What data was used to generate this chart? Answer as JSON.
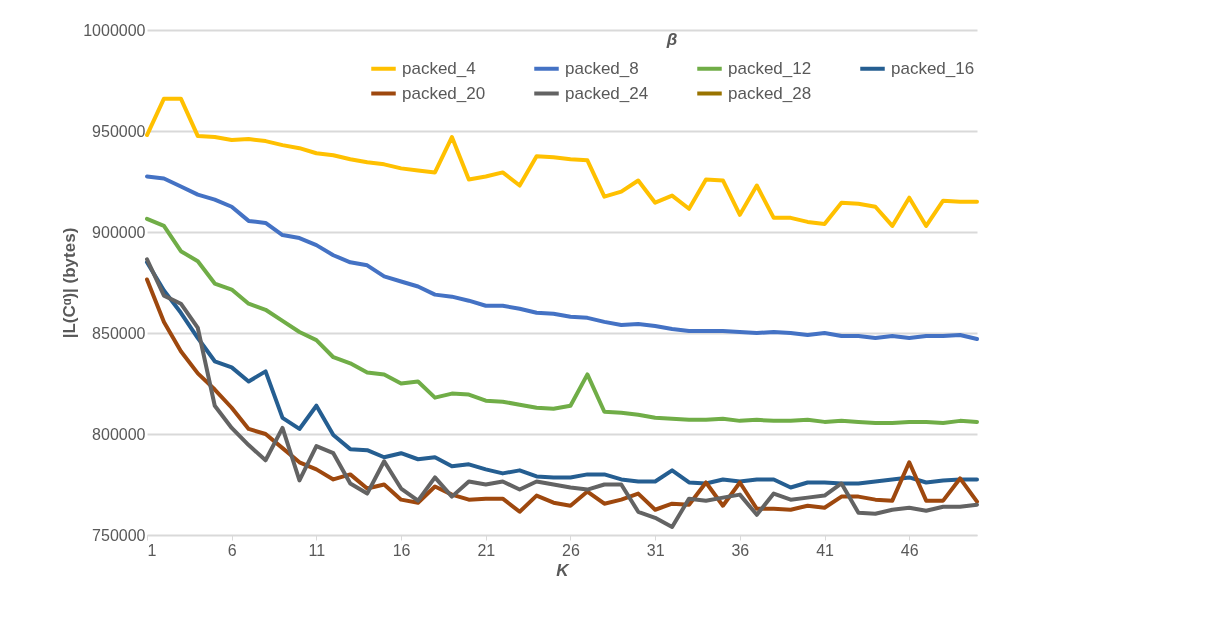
{
  "chart_data": {
    "type": "line",
    "xlabel": "K",
    "ylabel": "|L(Cᵅ)| (bytes)",
    "legend_title": "β",
    "x": [
      1,
      2,
      3,
      4,
      5,
      6,
      7,
      8,
      9,
      10,
      11,
      12,
      13,
      14,
      15,
      16,
      17,
      18,
      19,
      20,
      21,
      22,
      23,
      24,
      25,
      26,
      27,
      28,
      29,
      30,
      31,
      32,
      33,
      34,
      35,
      36,
      37,
      38,
      39,
      40,
      41,
      42,
      43,
      44,
      45,
      46,
      47,
      48,
      49,
      50
    ],
    "xlim": [
      1,
      50
    ],
    "xticks": [
      1,
      6,
      11,
      16,
      21,
      26,
      31,
      36,
      41,
      46
    ],
    "ylim": [
      750000,
      1000000
    ],
    "yticks": [
      750000,
      800000,
      850000,
      900000,
      950000,
      1000000
    ],
    "grid": "y",
    "legend": "top right",
    "line_style": "solid",
    "marker": "none",
    "series": [
      {
        "name": "packed_4",
        "color": "#ffc000",
        "values": [
          948000,
          966000,
          966000,
          947500,
          947000,
          945500,
          946000,
          945000,
          943000,
          941500,
          939000,
          938000,
          936000,
          934500,
          933500,
          931500,
          930500,
          929500,
          947000,
          926000,
          927500,
          929500,
          923000,
          937500,
          937000,
          936000,
          935500,
          917500,
          920000,
          925500,
          914500,
          918000,
          911500,
          926000,
          925500,
          908500,
          923000,
          907000,
          907000,
          905000,
          904000,
          914500,
          914000,
          912500,
          903000,
          917000,
          903000,
          915500,
          915000,
          915000
        ]
      },
      {
        "name": "packed_8",
        "color": "#4472c4",
        "values": [
          927500,
          926500,
          922500,
          918500,
          916000,
          912500,
          905500,
          904500,
          898500,
          897000,
          893500,
          888500,
          885000,
          883500,
          878000,
          875500,
          873000,
          869000,
          868000,
          866000,
          863500,
          863500,
          862000,
          860000,
          859500,
          858000,
          857500,
          855500,
          854000,
          854500,
          853500,
          852000,
          851000,
          851000,
          851000,
          850500,
          850000,
          850500,
          850000,
          849000,
          850000,
          848500,
          848500,
          847500,
          848500,
          847500,
          848500,
          848500,
          849000,
          847000
        ]
      },
      {
        "name": "packed_12",
        "color": "#70ad47",
        "values": [
          906500,
          903000,
          890500,
          885500,
          874500,
          871500,
          864500,
          861500,
          856000,
          850500,
          846500,
          838000,
          835000,
          830500,
          829500,
          825000,
          826000,
          818000,
          820000,
          819500,
          816500,
          816000,
          814500,
          813000,
          812500,
          814000,
          829500,
          811000,
          810500,
          809500,
          808000,
          807500,
          807000,
          807000,
          807500,
          806500,
          807000,
          806500,
          806500,
          807000,
          806000,
          806500,
          806000,
          805500,
          805500,
          806000,
          806000,
          805500,
          806500,
          806000
        ]
      },
      {
        "name": "packed_16",
        "color": "#255e91",
        "values": [
          885000,
          871000,
          860000,
          847500,
          836000,
          833000,
          826000,
          831000,
          808000,
          802500,
          814000,
          799500,
          792500,
          792000,
          788500,
          790500,
          787500,
          788500,
          784000,
          785000,
          782500,
          780500,
          782000,
          779000,
          778500,
          778500,
          780000,
          780000,
          777500,
          776500,
          776500,
          782000,
          776000,
          775500,
          777500,
          776500,
          777500,
          777500,
          773500,
          776000,
          776000,
          775500,
          775500,
          776500,
          777500,
          778500,
          776000,
          777000,
          777500,
          777500
        ]
      },
      {
        "name": "packed_20",
        "color": "#9e480e",
        "values": [
          876500,
          855500,
          841000,
          830000,
          822000,
          813000,
          802500,
          800000,
          793000,
          786000,
          782500,
          777500,
          780000,
          773000,
          775000,
          767500,
          766000,
          774000,
          770000,
          767500,
          768000,
          768000,
          761500,
          769500,
          766000,
          764500,
          771500,
          765500,
          767500,
          770500,
          762500,
          765500,
          765000,
          776000,
          764500,
          776000,
          763000,
          763000,
          762500,
          764500,
          763500,
          769000,
          769000,
          767500,
          767000,
          786000,
          767000,
          767000,
          778000,
          766500
        ]
      },
      {
        "name": "packed_24",
        "color": "#636363",
        "values": [
          886500,
          868500,
          864500,
          852500,
          814000,
          803000,
          794500,
          787000,
          803000,
          777000,
          794000,
          790500,
          775500,
          770500,
          786500,
          773000,
          767000,
          778500,
          769000,
          776500,
          775000,
          776500,
          772500,
          776500,
          775000,
          773500,
          772500,
          775000,
          775000,
          761500,
          758500,
          754000,
          768000,
          767000,
          768500,
          770000,
          760000,
          770500,
          767500,
          768500,
          769500,
          775500,
          761000,
          760500,
          762500,
          763500,
          762000,
          764000,
          764000,
          765000
        ]
      },
      {
        "name": "packed_28",
        "color": "#997300",
        "values": [
          null,
          null,
          null,
          null,
          null,
          null,
          null,
          null,
          null,
          null,
          null,
          null,
          null,
          null,
          null,
          null,
          null,
          null,
          null,
          null,
          null,
          null,
          null,
          null,
          null,
          null,
          null,
          null,
          null,
          null,
          null,
          null,
          null,
          null,
          null,
          null,
          null,
          null,
          null,
          null,
          null,
          null,
          null,
          null,
          null,
          null,
          null,
          null,
          null,
          null
        ]
      }
    ]
  }
}
